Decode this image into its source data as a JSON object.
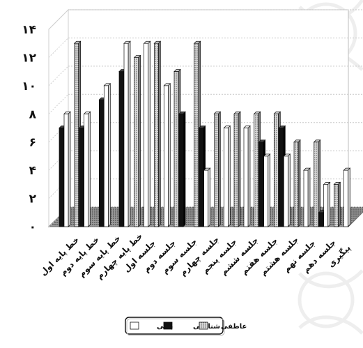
{
  "chart_data": {
    "type": "bar",
    "title": "",
    "xlabel": "",
    "ylabel": "",
    "ylim": [
      0,
      14
    ],
    "grid": true,
    "legend_position": "bottom",
    "y_ticks": [
      {
        "value": 0,
        "label": "۰"
      },
      {
        "value": 2,
        "label": "۲"
      },
      {
        "value": 4,
        "label": "۴"
      },
      {
        "value": 6,
        "label": "۶"
      },
      {
        "value": 8,
        "label": "۸"
      },
      {
        "value": 10,
        "label": "۱۰"
      },
      {
        "value": 12,
        "label": "۱۲"
      },
      {
        "value": 14,
        "label": "۱۴"
      }
    ],
    "categories": [
      "خط پایه اول",
      "خط پایه دوم",
      "خط پایه سوم",
      "خط پایه چهارم",
      "جلسه اول",
      "جلسه دوم",
      "جلسه سوم",
      "جلسه چهارم",
      "جلسه پنجم",
      "جلسه ششم",
      "جلسه هفتم",
      "جلسه هشتم",
      "جلسه نهم",
      "جلسه دهم",
      "پیگیری"
    ],
    "series": [
      {
        "name": "عاطفی",
        "color": "#a9a9a9",
        "pattern": "dotted",
        "values": [
          0,
          13,
          0,
          0,
          12,
          13,
          11,
          13,
          8,
          8,
          8,
          8,
          6,
          6,
          3
        ]
      },
      {
        "name": "شناختی",
        "color": "#111111",
        "pattern": "solid",
        "values": [
          7,
          7,
          9,
          11,
          0,
          0,
          8,
          7,
          0,
          0,
          6,
          7,
          0,
          1,
          0
        ]
      },
      {
        "name": "بدنی",
        "color": "#ffffff",
        "pattern": "hollow",
        "values": [
          8,
          8,
          10,
          13,
          13,
          10,
          0,
          4,
          7,
          7,
          5,
          5,
          4,
          3,
          4
        ]
      }
    ]
  }
}
